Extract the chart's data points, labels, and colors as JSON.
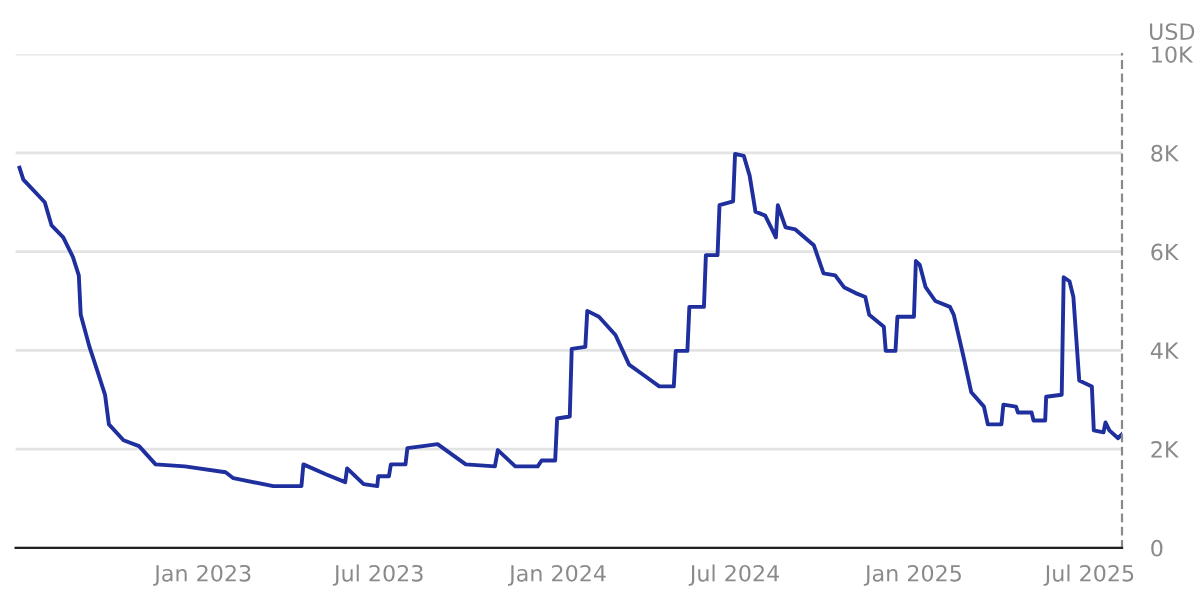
{
  "chart_data": {
    "type": "line",
    "ylabel": "USD",
    "x": [
      "2022-06-26",
      "2022-06-30",
      "2022-07-22",
      "2022-07-29",
      "2022-08-10",
      "2022-08-20",
      "2022-08-26",
      "2022-08-28",
      "2022-09-06",
      "2022-09-14",
      "2022-09-22",
      "2022-09-26",
      "2022-10-11",
      "2022-10-27",
      "2022-11-13",
      "2022-12-13",
      "2023-01-24",
      "2023-02-01",
      "2023-03-14",
      "2023-04-12",
      "2023-04-14",
      "2023-05-07",
      "2023-05-27",
      "2023-05-29",
      "2023-06-15",
      "2023-06-29",
      "2023-06-30",
      "2023-07-11",
      "2023-07-13",
      "2023-07-28",
      "2023-07-30",
      "2023-08-15",
      "2023-08-30",
      "2023-09-28",
      "2023-10-28",
      "2023-10-31",
      "2023-11-18",
      "2023-12-11",
      "2023-12-15",
      "2023-12-29",
      "2023-12-31",
      "2024-01-13",
      "2024-01-15",
      "2024-01-29",
      "2024-01-31",
      "2024-02-12",
      "2024-02-29",
      "2024-03-14",
      "2024-03-31",
      "2024-04-14",
      "2024-04-29",
      "2024-05-01",
      "2024-05-13",
      "2024-05-15",
      "2024-05-30",
      "2024-06-01",
      "2024-06-13",
      "2024-06-15",
      "2024-06-29",
      "2024-07-01",
      "2024-07-10",
      "2024-07-16",
      "2024-07-22",
      "2024-08-01",
      "2024-08-07",
      "2024-08-12",
      "2024-08-14",
      "2024-08-22",
      "2024-09-01",
      "2024-09-20",
      "2024-09-30",
      "2024-10-12",
      "2024-10-21",
      "2024-11-02",
      "2024-11-12",
      "2024-11-16",
      "2024-12-01",
      "2024-12-03",
      "2024-12-13",
      "2024-12-15",
      "2025-01-01",
      "2025-01-03",
      "2025-01-07",
      "2025-01-13",
      "2025-01-23",
      "2025-02-07",
      "2025-02-11",
      "2025-02-21",
      "2025-03-01",
      "2025-03-14",
      "2025-03-18",
      "2025-04-01",
      "2025-04-03",
      "2025-04-16",
      "2025-04-18",
      "2025-05-02",
      "2025-05-04",
      "2025-05-16",
      "2025-05-17",
      "2025-06-02",
      "2025-06-04",
      "2025-06-10",
      "2025-06-14",
      "2025-06-20",
      "2025-07-03",
      "2025-07-05",
      "2025-07-15",
      "2025-07-17",
      "2025-07-21",
      "2025-07-30",
      "2025-08-03"
    ],
    "series": [
      {
        "color": "#1f2f9e",
        "values": [
          7700,
          7460,
          7000,
          6530,
          6290,
          5890,
          5520,
          4720,
          4070,
          3590,
          3100,
          2500,
          2180,
          2060,
          1690,
          1650,
          1530,
          1410,
          1250,
          1250,
          1690,
          1490,
          1330,
          1610,
          1290,
          1250,
          1450,
          1450,
          1690,
          1690,
          2020,
          2060,
          2100,
          1690,
          1650,
          1980,
          1650,
          1650,
          1770,
          1770,
          2620,
          2660,
          4030,
          4070,
          4800,
          4680,
          4310,
          3710,
          3470,
          3270,
          3270,
          3990,
          3990,
          4880,
          4880,
          5930,
          5930,
          6940,
          7020,
          7980,
          7940,
          7540,
          6810,
          6730,
          6490,
          6290,
          6940,
          6490,
          6450,
          6130,
          5560,
          5520,
          5280,
          5160,
          5080,
          4720,
          4480,
          3990,
          3990,
          4680,
          4680,
          5810,
          5730,
          5280,
          5000,
          4880,
          4720,
          3870,
          3150,
          2860,
          2500,
          2500,
          2900,
          2860,
          2740,
          2740,
          2580,
          2580,
          3060,
          3100,
          5480,
          5400,
          5080,
          3390,
          3270,
          2380,
          2340,
          2540,
          2380,
          2220,
          2300
        ]
      }
    ],
    "xlim": [
      "2022-06-22",
      "2025-08-03"
    ],
    "xticks": [
      {
        "value": "2023-01-01",
        "label": "Jan 2023"
      },
      {
        "value": "2023-07-01",
        "label": "Jul 2023"
      },
      {
        "value": "2024-01-01",
        "label": "Jan 2024"
      },
      {
        "value": "2024-07-01",
        "label": "Jul 2024"
      },
      {
        "value": "2025-01-01",
        "label": "Jan 2025"
      },
      {
        "value": "2025-07-01",
        "label": "Jul 2025"
      }
    ],
    "ylim": [
      0,
      10000
    ],
    "yticks": [
      0,
      {
        "value": 2000,
        "label": "2K"
      },
      {
        "value": 4000,
        "label": "4K"
      },
      {
        "value": 6000,
        "label": "6K"
      },
      {
        "value": 8000,
        "label": "8K"
      },
      {
        "value": 10000,
        "label": "10K"
      }
    ],
    "grid": "y",
    "legend": false,
    "marker": "none",
    "line_style": "solid"
  }
}
